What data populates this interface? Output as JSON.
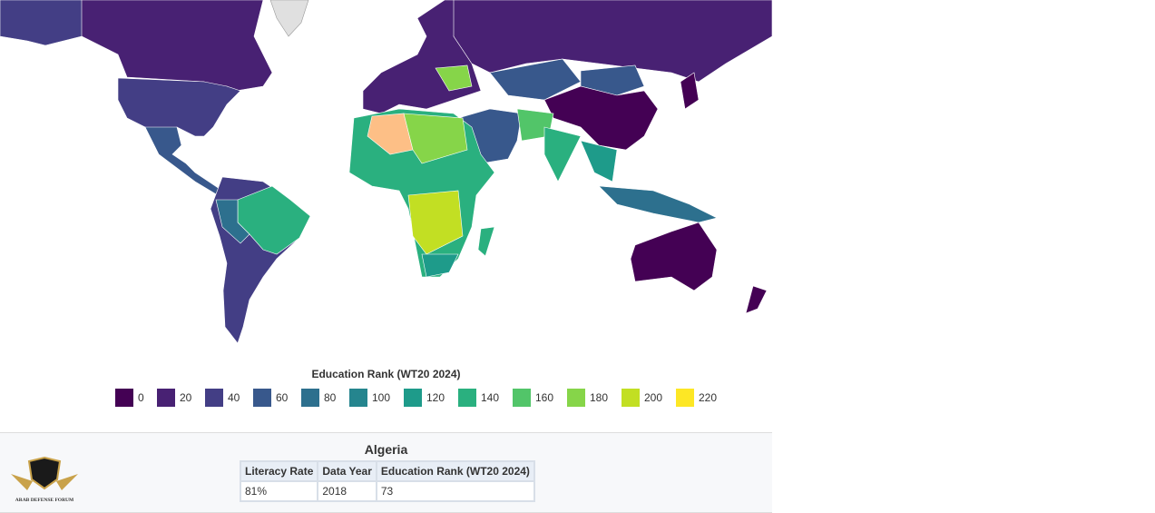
{
  "legend": {
    "title": "Education Rank (WT20 2024)",
    "items": [
      {
        "value": 0,
        "color": "#440154"
      },
      {
        "value": 20,
        "color": "#482173"
      },
      {
        "value": 40,
        "color": "#433e85"
      },
      {
        "value": 60,
        "color": "#38588c"
      },
      {
        "value": 80,
        "color": "#2d708e"
      },
      {
        "value": 100,
        "color": "#25858e"
      },
      {
        "value": 120,
        "color": "#1e9b8a"
      },
      {
        "value": 140,
        "color": "#2ab07f"
      },
      {
        "value": 160,
        "color": "#52c569"
      },
      {
        "value": 180,
        "color": "#86d549"
      },
      {
        "value": 200,
        "color": "#c2df23"
      },
      {
        "value": 220,
        "color": "#fde725"
      }
    ]
  },
  "panel": {
    "title": "Algeria",
    "table": {
      "columns": [
        "Literacy Rate",
        "Data Year",
        "Education Rank (WT20 2024)"
      ],
      "rows": [
        [
          "81%",
          "2018",
          "73"
        ]
      ]
    }
  },
  "logo": {
    "name": "ARAB DEFENSE FORUM"
  }
}
